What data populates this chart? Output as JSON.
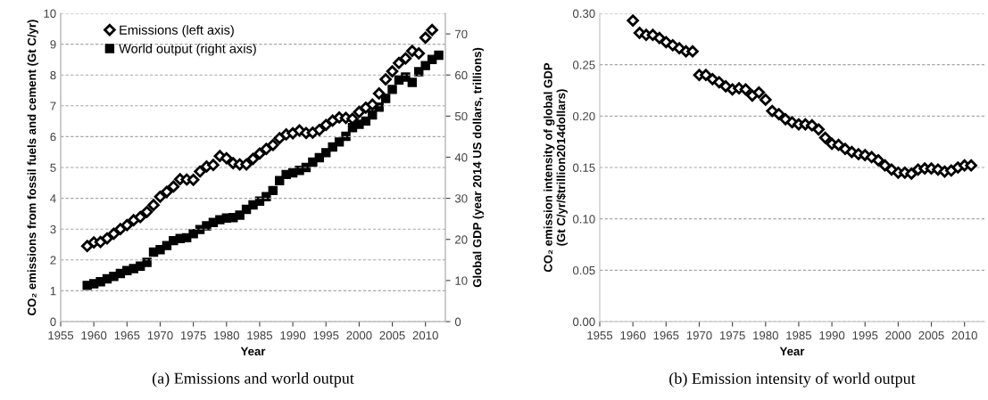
{
  "chart_data": [
    {
      "type": "scatter",
      "xlabel": "Year",
      "ylabel": "CO₂ emissions from fossil fuels and cement (Gt C/yr)",
      "y2label": "Global GDP (year 2014 US dollars, trillions)",
      "xlim": [
        1955,
        2013
      ],
      "xticks": [
        1955,
        1960,
        1965,
        1970,
        1975,
        1980,
        1985,
        1990,
        1995,
        2000,
        2005,
        2010
      ],
      "ylim": [
        0,
        10
      ],
      "yticks": [
        0,
        1,
        2,
        3,
        4,
        5,
        6,
        7,
        8,
        9,
        10
      ],
      "y2lim": [
        0,
        75
      ],
      "y2ticks": [
        0,
        10,
        20,
        30,
        40,
        50,
        60,
        70
      ],
      "grid": "y",
      "legend": "top left",
      "annotations": [
        "(a) Emissions and world output"
      ],
      "series": [
        {
          "name": "Emissions (left axis)",
          "color": "#000000",
          "marker": "diamond",
          "x": [
            1959,
            1960,
            1961,
            1962,
            1963,
            1964,
            1965,
            1966,
            1967,
            1968,
            1969,
            1970,
            1971,
            1972,
            1973,
            1974,
            1975,
            1976,
            1977,
            1978,
            1979,
            1980,
            1981,
            1982,
            1983,
            1984,
            1985,
            1986,
            1987,
            1988,
            1989,
            1990,
            1991,
            1992,
            1993,
            1994,
            1995,
            1996,
            1997,
            1998,
            1999,
            2000,
            2001,
            2002,
            2003,
            2004,
            2005,
            2006,
            2007,
            2008,
            2009,
            2010,
            2011
          ],
          "values": [
            2.45,
            2.57,
            2.58,
            2.7,
            2.85,
            3.0,
            3.13,
            3.29,
            3.39,
            3.56,
            3.78,
            4.05,
            4.21,
            4.38,
            4.62,
            4.61,
            4.6,
            4.87,
            5.03,
            5.08,
            5.37,
            5.3,
            5.14,
            5.1,
            5.1,
            5.28,
            5.45,
            5.6,
            5.73,
            5.95,
            6.07,
            6.11,
            6.2,
            6.12,
            6.13,
            6.22,
            6.38,
            6.52,
            6.62,
            6.61,
            6.58,
            6.8,
            6.94,
            7.04,
            7.4,
            7.86,
            8.12,
            8.39,
            8.54,
            8.78,
            8.7,
            9.21,
            9.46
          ]
        },
        {
          "name": "World output (right axis)",
          "color": "#000000",
          "marker": "square",
          "axis": "y2",
          "x": [
            1959,
            1960,
            1961,
            1962,
            1963,
            1964,
            1965,
            1966,
            1967,
            1968,
            1969,
            1970,
            1971,
            1972,
            1973,
            1974,
            1975,
            1976,
            1977,
            1978,
            1979,
            1980,
            1981,
            1982,
            1983,
            1984,
            1985,
            1986,
            1987,
            1988,
            1989,
            1990,
            1991,
            1992,
            1993,
            1994,
            1995,
            1996,
            1997,
            1998,
            1999,
            2000,
            2001,
            2002,
            2003,
            2004,
            2005,
            2006,
            2007,
            2008,
            2009,
            2010,
            2011,
            2012
          ],
          "values": [
            8.8,
            9.2,
            9.7,
            10.4,
            11.0,
            11.7,
            12.4,
            12.9,
            13.5,
            14.4,
            16.9,
            17.5,
            18.5,
            19.7,
            20.2,
            20.4,
            21.4,
            22.4,
            23.3,
            24.1,
            24.8,
            25.2,
            25.3,
            25.9,
            27.3,
            28.4,
            29.3,
            30.4,
            31.9,
            34.3,
            35.8,
            36.2,
            36.8,
            37.5,
            38.8,
            39.9,
            41.1,
            42.5,
            43.7,
            45.1,
            47.2,
            48.0,
            48.8,
            50.3,
            52.2,
            54.3,
            56.5,
            58.8,
            59.5,
            58.2,
            60.8,
            62.3,
            63.8,
            64.8
          ]
        }
      ]
    },
    {
      "type": "scatter",
      "xlabel": "Year",
      "ylabel": "CO₂ emission intensity of global GDP\n(Gt C/yr/$trillion2014dollars)",
      "xlim": [
        1955,
        2013
      ],
      "xticks": [
        1955,
        1960,
        1965,
        1970,
        1975,
        1980,
        1985,
        1990,
        1995,
        2000,
        2005,
        2010
      ],
      "ylim": [
        0,
        0.3
      ],
      "yticks": [
        {
          "value": 0,
          "label": "0.00"
        },
        {
          "value": 0.05,
          "label": "0.05"
        },
        {
          "value": 0.1,
          "label": "0.10"
        },
        {
          "value": 0.15,
          "label": "0.15"
        },
        {
          "value": 0.2,
          "label": "0.20"
        },
        {
          "value": 0.25,
          "label": "0.25"
        },
        {
          "value": 0.3,
          "label": "0.30"
        }
      ],
      "grid": "y",
      "annotations": [
        "(b) Emission intensity of world output"
      ],
      "series": [
        {
          "color": "#000000",
          "marker": "diamond",
          "x": [
            1960,
            1961,
            1962,
            1963,
            1964,
            1965,
            1966,
            1967,
            1968,
            1969,
            1970,
            1971,
            1972,
            1973,
            1974,
            1975,
            1976,
            1977,
            1978,
            1979,
            1980,
            1981,
            1982,
            1983,
            1984,
            1985,
            1986,
            1987,
            1988,
            1989,
            1990,
            1991,
            1992,
            1993,
            1994,
            1995,
            1996,
            1997,
            1998,
            1999,
            2000,
            2001,
            2002,
            2003,
            2004,
            2005,
            2006,
            2007,
            2008,
            2009,
            2010,
            2011
          ],
          "values": [
            0.293,
            0.281,
            0.279,
            0.279,
            0.276,
            0.272,
            0.269,
            0.266,
            0.263,
            0.263,
            0.24,
            0.24,
            0.236,
            0.233,
            0.229,
            0.226,
            0.227,
            0.226,
            0.22,
            0.223,
            0.216,
            0.205,
            0.202,
            0.197,
            0.194,
            0.192,
            0.192,
            0.191,
            0.187,
            0.179,
            0.173,
            0.172,
            0.168,
            0.165,
            0.163,
            0.162,
            0.16,
            0.157,
            0.152,
            0.148,
            0.145,
            0.145,
            0.144,
            0.148,
            0.149,
            0.149,
            0.148,
            0.146,
            0.147,
            0.15,
            0.152,
            0.152
          ]
        }
      ]
    }
  ]
}
